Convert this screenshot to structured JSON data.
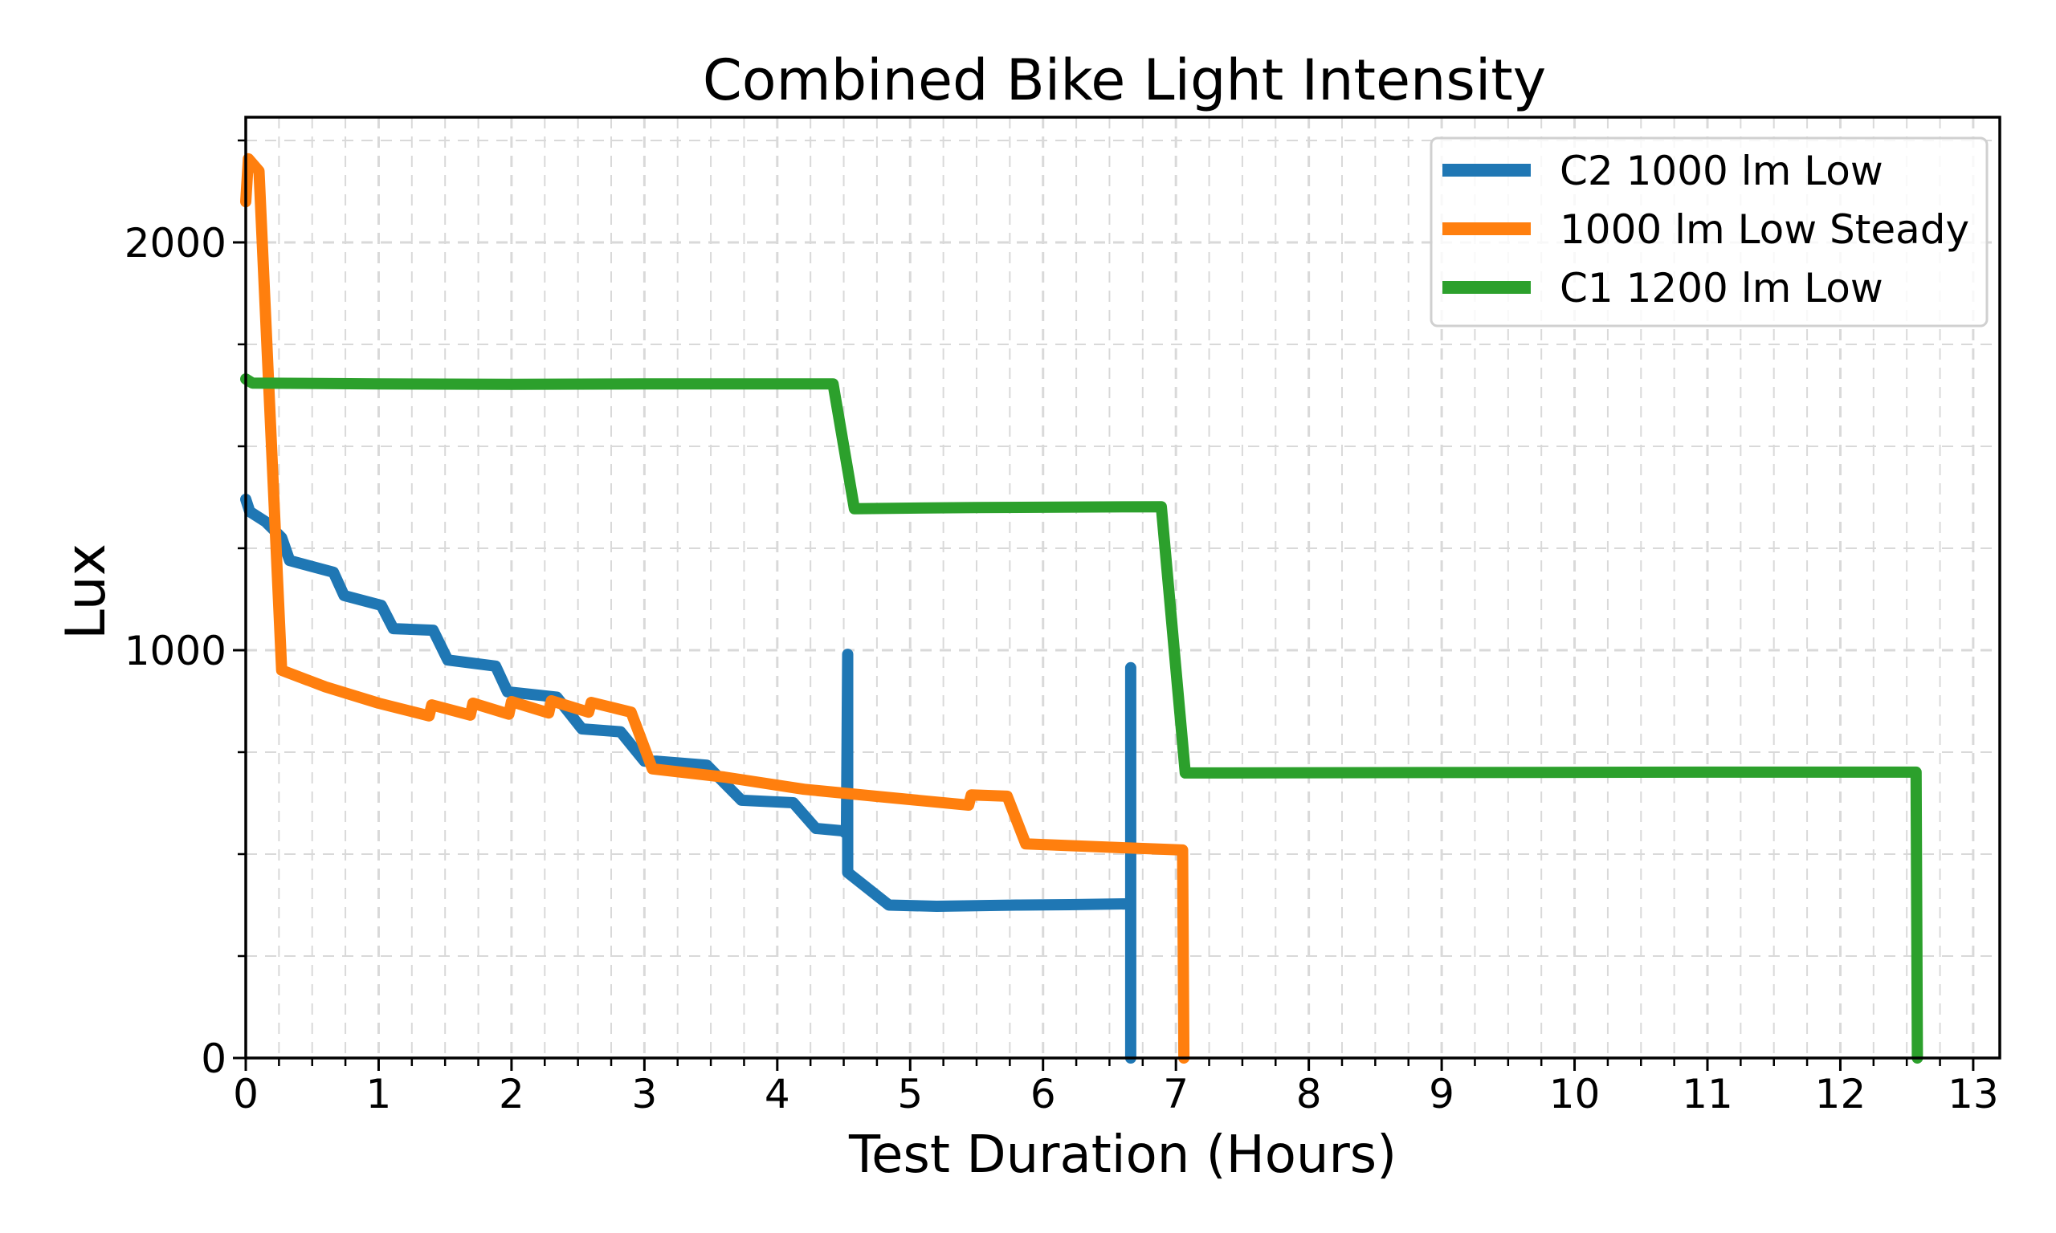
{
  "chart_data": {
    "type": "line",
    "title": "Combined Bike Light Intensity",
    "xlabel": "Test Duration (Hours)",
    "ylabel": "Lux",
    "xlim": [
      0,
      13.2
    ],
    "ylim": [
      0,
      2307
    ],
    "xticks": [
      0,
      1,
      2,
      3,
      4,
      5,
      6,
      7,
      8,
      9,
      10,
      11,
      12,
      13
    ],
    "xtick_labels": [
      "0",
      "1",
      "2",
      "3",
      "4",
      "5",
      "6",
      "7",
      "8",
      "9",
      "10",
      "11",
      "12",
      "13"
    ],
    "x_minor_step": 0.25,
    "yticks": [
      0,
      1000,
      2000
    ],
    "ytick_labels": [
      "0",
      "1000",
      "2000"
    ],
    "y_minor_step": 250,
    "grid": true,
    "legend_position": "top-right",
    "series": [
      {
        "name": "C2 1000 lm Low",
        "color": "#1f77b4",
        "x": [
          0,
          0.03,
          0.15,
          0.27,
          0.33,
          0.66,
          0.74,
          1.02,
          1.11,
          1.41,
          1.52,
          1.88,
          1.97,
          2.34,
          2.53,
          2.82,
          3.0,
          3.09,
          3.47,
          3.73,
          4.12,
          4.29,
          4.49,
          4.52,
          4.53,
          4.53,
          4.84,
          5.2,
          5.8,
          6.2,
          6.62,
          6.66,
          6.66,
          6.66
        ],
        "y": [
          1370,
          1340,
          1315,
          1276,
          1220,
          1191,
          1134,
          1110,
          1053,
          1049,
          976,
          961,
          898,
          885,
          807,
          800,
          728,
          728,
          718,
          632,
          626,
          563,
          557,
          550,
          990,
          455,
          375,
          372,
          375,
          376,
          378,
          378,
          957,
          0
        ]
      },
      {
        "name": "1000 lm Low Steady",
        "color": "#ff7f0e",
        "x": [
          0,
          0.02,
          0.1,
          0.27,
          0.6,
          1.0,
          1.38,
          1.4,
          1.69,
          1.71,
          1.98,
          2.0,
          2.28,
          2.3,
          2.58,
          2.6,
          2.9,
          3.06,
          3.6,
          4.2,
          4.8,
          5.44,
          5.46,
          5.73,
          5.87,
          6.4,
          7.05,
          7.06
        ],
        "y": [
          2100,
          2205,
          2175,
          951,
          910,
          870,
          839,
          866,
          841,
          870,
          843,
          874,
          846,
          876,
          848,
          872,
          848,
          709,
          689,
          659,
          640,
          620,
          645,
          642,
          525,
          518,
          510,
          0
        ]
      },
      {
        "name": "C1 1200 lm Low",
        "color": "#2ca02c",
        "x": [
          0,
          0.05,
          1.0,
          2.0,
          3.0,
          4.0,
          4.42,
          4.58,
          5.5,
          6.89,
          7.07,
          9.0,
          11.0,
          12.57,
          12.58
        ],
        "y": [
          1665,
          1655,
          1653,
          1652,
          1653,
          1653,
          1653,
          1347,
          1350,
          1352,
          699,
          700,
          701,
          701,
          0
        ]
      }
    ]
  }
}
